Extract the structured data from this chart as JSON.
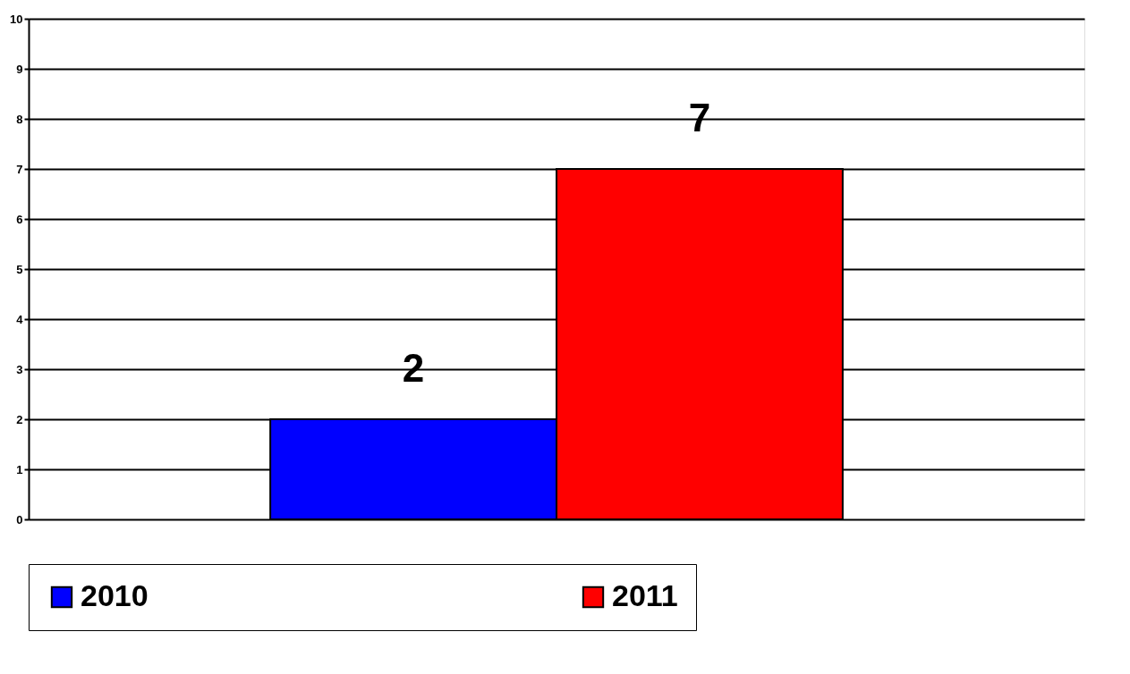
{
  "chart_data": {
    "type": "bar",
    "categories": [
      null
    ],
    "series": [
      {
        "name": "2010",
        "color": "#0000ff",
        "values": [
          2
        ]
      },
      {
        "name": "2011",
        "color": "#ff0000",
        "values": [
          7
        ]
      }
    ],
    "ylim": [
      0,
      10
    ],
    "yticks": [
      0,
      1,
      2,
      3,
      4,
      5,
      6,
      7,
      8,
      9,
      10
    ],
    "grid": "y",
    "legend": "bottom",
    "data_labels": true,
    "tick_labels": "y"
  }
}
